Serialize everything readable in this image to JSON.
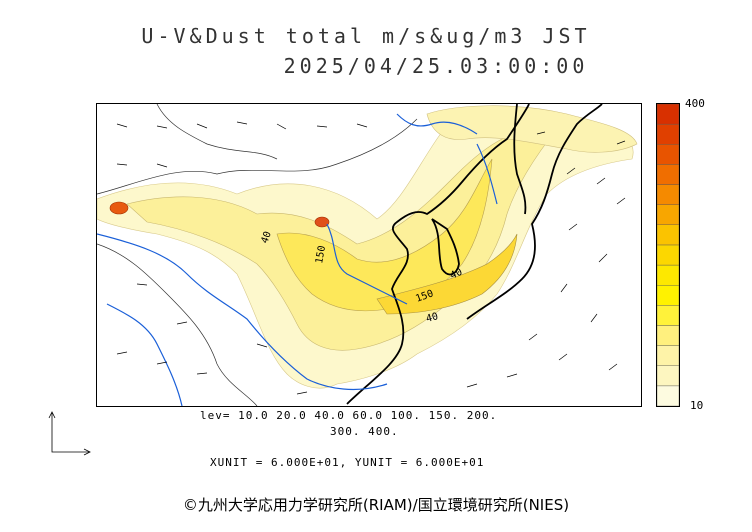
{
  "header": {
    "title_line1": "U-V&Dust total m/s&ug/m3 JST",
    "title_line2": "2025/04/25.03:00:00"
  },
  "colorbar": {
    "max_label": "400",
    "min_label": "10",
    "colors": [
      "#fdfbe0",
      "#fdf6c0",
      "#fef3a8",
      "#fff07e",
      "#fff23a",
      "#fff200",
      "#fde800",
      "#fcd700",
      "#fbc300",
      "#f8a600",
      "#f58a00",
      "#f06e00",
      "#e85400",
      "#e04000",
      "#d83000"
    ]
  },
  "legend": {
    "levels_line1": "lev= 10.0 20.0 40.0 60.0 100. 150. 200.",
    "levels_line2": "300. 400.",
    "unit_line": "XUNIT = 6.000E+01, YUNIT = 6.000E+01"
  },
  "map": {
    "contour_labels": [
      "40",
      "150",
      "40",
      "150",
      "40"
    ]
  },
  "footer": {
    "credit": "©九州大学応用力学研究所(RIAM)/国立環境研究所(NIES)"
  }
}
